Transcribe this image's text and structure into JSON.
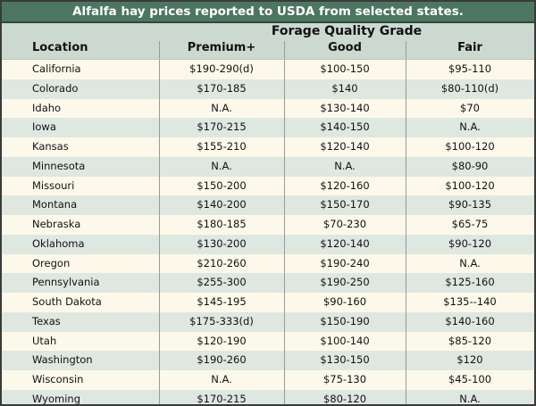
{
  "title": "Alfalfa hay prices reported to USDA from selected states.",
  "group_header": "Forage Quality Grade",
  "columns": [
    "Location",
    "Premium+",
    "Good",
    "Fair"
  ],
  "rows": [
    {
      "location": "California",
      "premium": "$190-290(d)",
      "good": "$100-150",
      "fair": "$95-110"
    },
    {
      "location": "Colorado",
      "premium": "$170-185",
      "good": "$140",
      "fair": "$80-110(d)"
    },
    {
      "location": "Idaho",
      "premium": "N.A.",
      "good": "$130-140",
      "fair": "$70"
    },
    {
      "location": "Iowa",
      "premium": "$170-215",
      "good": "$140-150",
      "fair": "N.A."
    },
    {
      "location": "Kansas",
      "premium": "$155-210",
      "good": "$120-140",
      "fair": "$100-120"
    },
    {
      "location": "Minnesota",
      "premium": "N.A.",
      "good": "N.A.",
      "fair": "$80-90"
    },
    {
      "location": "Missouri",
      "premium": "$150-200",
      "good": "$120-160",
      "fair": "$100-120"
    },
    {
      "location": "Montana",
      "premium": "$140-200",
      "good": "$150-170",
      "fair": "$90-135"
    },
    {
      "location": "Nebraska",
      "premium": "$180-185",
      "good": "$70-230",
      "fair": "$65-75"
    },
    {
      "location": "Oklahoma",
      "premium": "$130-200",
      "good": "$120-140",
      "fair": "$90-120"
    },
    {
      "location": "Oregon",
      "premium": "$210-260",
      "good": "$190-240",
      "fair": "N.A."
    },
    {
      "location": "Pennsylvania",
      "premium": "$255-300",
      "good": "$190-250",
      "fair": "$125-160"
    },
    {
      "location": "South Dakota",
      "premium": "$145-195",
      "good": "$90-160",
      "fair": "$135--140"
    },
    {
      "location": "Texas",
      "premium": "$175-333(d)",
      "good": "$150-190",
      "fair": "$140-160"
    },
    {
      "location": "Utah",
      "premium": "$120-190",
      "good": "$100-140",
      "fair": "$85-120"
    },
    {
      "location": "Washington",
      "premium": "$190-260",
      "good": "$130-150",
      "fair": "$120"
    },
    {
      "location": "Wisconsin",
      "premium": "N.A.",
      "good": "$75-130",
      "fair": "$45-100"
    },
    {
      "location": "Wyoming",
      "premium": "$170-215",
      "good": "$80-120",
      "fair": "N.A."
    }
  ],
  "colors": {
    "title_bg": "#4d7661",
    "header_bg": "#ccd9d0",
    "row_light": "#fdf9ea",
    "row_dark": "#dfe7e1"
  }
}
